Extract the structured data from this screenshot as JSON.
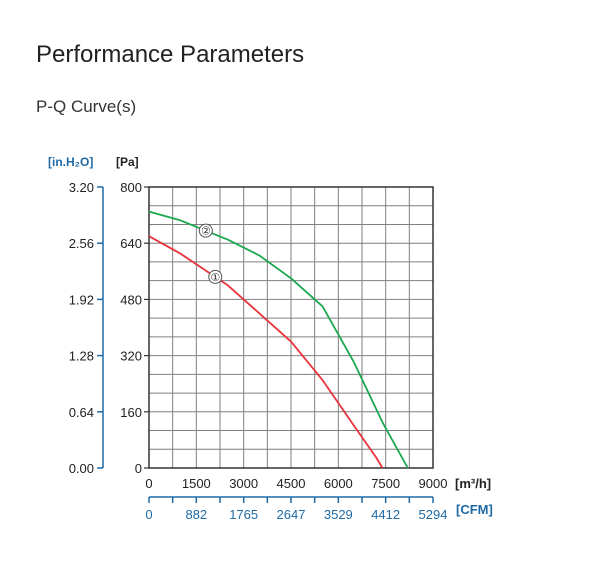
{
  "header": {
    "title": "Performance Parameters",
    "subtitle": "P-Q Curve(s)"
  },
  "colors": {
    "axis_blue": "#1f6aa5",
    "grid": "#7f7f7f",
    "frame": "#333333",
    "curve_1": "#e8323c",
    "curve_2": "#1aa84f"
  },
  "chart_data": {
    "type": "line",
    "title": "",
    "xlabel": "[m³/h]",
    "xlabel_secondary": "[CFM]",
    "ylabel": "[Pa]",
    "ylabel_secondary": "[in.H₂O]",
    "xlim": [
      0,
      9000
    ],
    "ylim": [
      0,
      800
    ],
    "grid": true,
    "x_ticks": [
      "0",
      "1500",
      "3000",
      "4500",
      "6000",
      "7500",
      "9000"
    ],
    "x_ticks_secondary": [
      "0",
      "882",
      "1765",
      "2647",
      "3529",
      "4412",
      "5294"
    ],
    "y_ticks": [
      "0",
      "160",
      "320",
      "480",
      "640",
      "800"
    ],
    "y_ticks_secondary": [
      "0.00",
      "0.64",
      "1.28",
      "1.92",
      "2.56",
      "3.20"
    ],
    "series": [
      {
        "name": "①",
        "color": "#e8323c",
        "marker_x": 2100,
        "points": [
          [
            0,
            660
          ],
          [
            1000,
            610
          ],
          [
            2500,
            520
          ],
          [
            3500,
            440
          ],
          [
            4500,
            360
          ],
          [
            5500,
            250
          ],
          [
            6500,
            120
          ],
          [
            7200,
            30
          ],
          [
            7400,
            0
          ]
        ]
      },
      {
        "name": "②",
        "color": "#1aa84f",
        "marker_x": 1800,
        "points": [
          [
            0,
            730
          ],
          [
            1000,
            705
          ],
          [
            2500,
            650
          ],
          [
            3500,
            605
          ],
          [
            4500,
            540
          ],
          [
            5500,
            460
          ],
          [
            6500,
            300
          ],
          [
            7400,
            130
          ],
          [
            8200,
            0
          ]
        ]
      }
    ]
  }
}
